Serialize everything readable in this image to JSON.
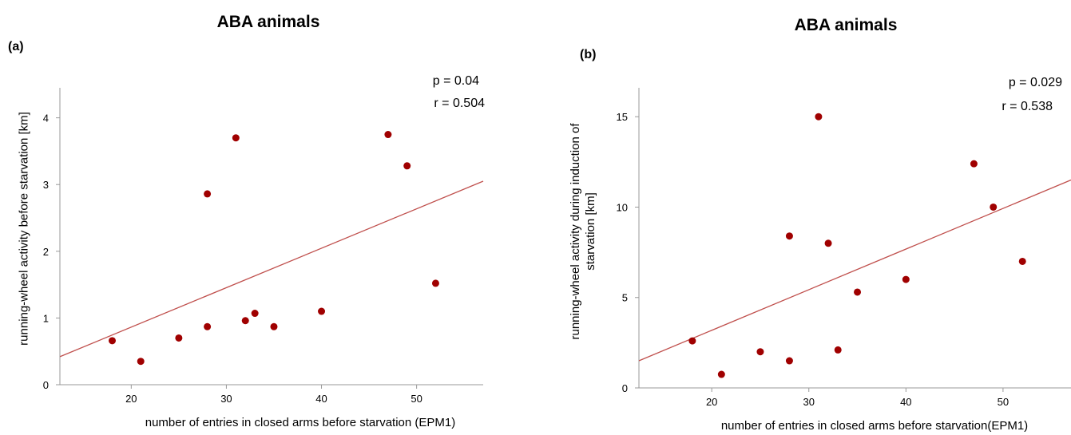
{
  "panels": [
    {
      "title": "ABA animals",
      "panel_label": "(a)",
      "p_text": "p = 0.04",
      "r_text": "r = 0.504"
    },
    {
      "title": "ABA animals",
      "panel_label": "(b)",
      "p_text": "p = 0.029",
      "r_text": "r = 0.538"
    }
  ],
  "chart_data": [
    {
      "type": "scatter",
      "title": "ABA animals",
      "xlabel": "number of entries in closed arms before starvation (EPM1)",
      "ylabel": "running-wheel activity before starvation [km]",
      "xlim": [
        12.5,
        57
      ],
      "ylim": [
        0,
        4.45
      ],
      "xticks": [
        20,
        30,
        40,
        50
      ],
      "yticks": [
        0,
        1,
        2,
        3,
        4
      ],
      "grid": false,
      "point_color": "#a00000",
      "line_color": "#c0504d",
      "points": [
        {
          "x": 18,
          "y": 0.66
        },
        {
          "x": 21,
          "y": 0.35
        },
        {
          "x": 25,
          "y": 0.7
        },
        {
          "x": 28,
          "y": 2.86
        },
        {
          "x": 28,
          "y": 0.87
        },
        {
          "x": 31,
          "y": 3.7
        },
        {
          "x": 32,
          "y": 0.96
        },
        {
          "x": 33,
          "y": 1.07
        },
        {
          "x": 35,
          "y": 0.87
        },
        {
          "x": 40,
          "y": 1.1
        },
        {
          "x": 47,
          "y": 3.75
        },
        {
          "x": 49,
          "y": 3.28
        },
        {
          "x": 52,
          "y": 1.52
        }
      ],
      "fit_line": {
        "x": [
          12.5,
          57
        ],
        "y": [
          0.42,
          3.05
        ]
      }
    },
    {
      "type": "scatter",
      "title": "ABA animals",
      "xlabel": "number of entries in closed arms before starvation(EPM1)",
      "ylabel": "running-wheel activity during induction of starvation [km]",
      "xlim": [
        12.5,
        57
      ],
      "ylim": [
        0,
        16.6
      ],
      "xticks": [
        20,
        30,
        40,
        50
      ],
      "yticks": [
        0,
        5,
        10,
        15
      ],
      "grid": false,
      "point_color": "#a00000",
      "line_color": "#c0504d",
      "points": [
        {
          "x": 18,
          "y": 2.6
        },
        {
          "x": 21,
          "y": 0.75
        },
        {
          "x": 25,
          "y": 2.0
        },
        {
          "x": 28,
          "y": 8.4
        },
        {
          "x": 28,
          "y": 1.5
        },
        {
          "x": 31,
          "y": 15.0
        },
        {
          "x": 32,
          "y": 8.0
        },
        {
          "x": 33,
          "y": 2.1
        },
        {
          "x": 35,
          "y": 5.3
        },
        {
          "x": 40,
          "y": 6.0
        },
        {
          "x": 47,
          "y": 12.4
        },
        {
          "x": 49,
          "y": 10.0
        },
        {
          "x": 52,
          "y": 7.0
        }
      ],
      "fit_line": {
        "x": [
          12.5,
          57
        ],
        "y": [
          1.5,
          11.5
        ]
      }
    }
  ]
}
